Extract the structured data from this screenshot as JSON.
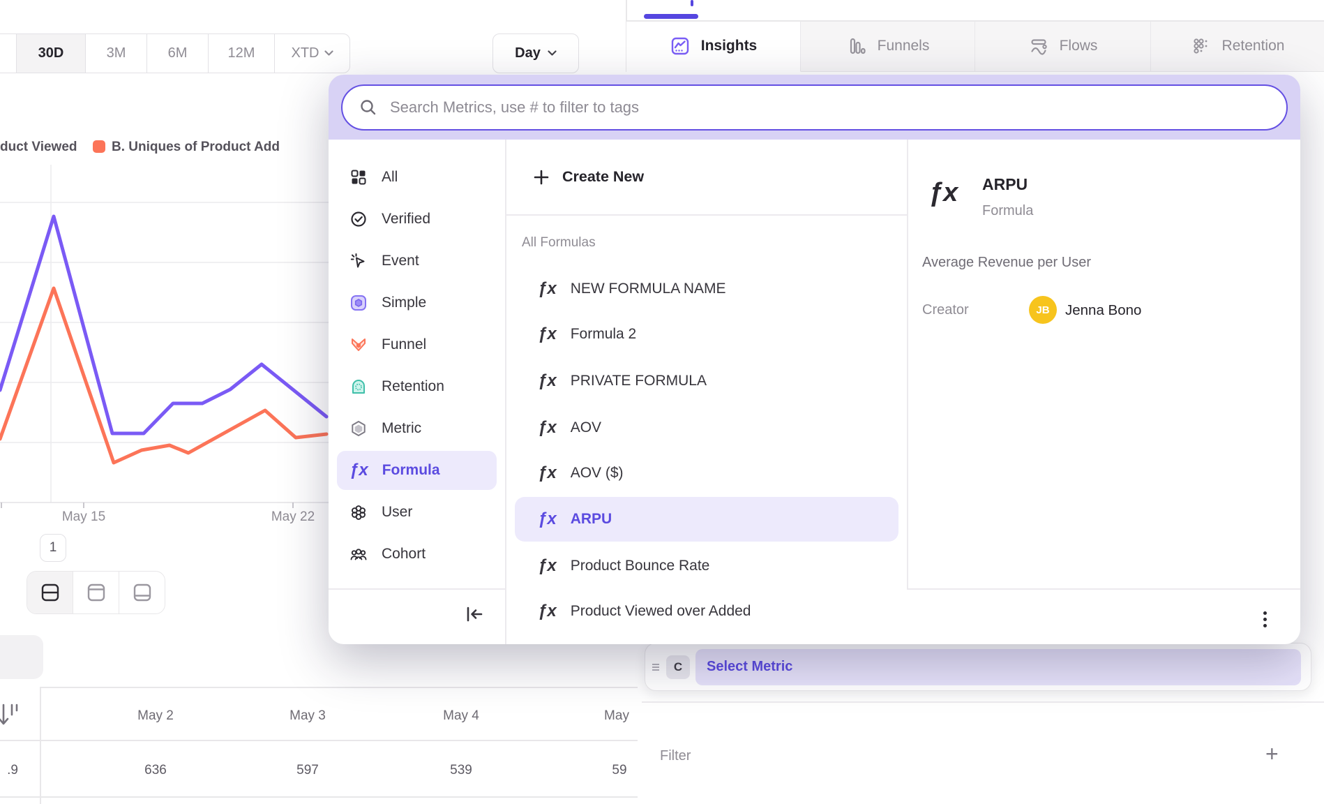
{
  "topbar": {
    "time_ranges": [
      {
        "label": "30D",
        "active": true
      },
      {
        "label": "3M",
        "active": false
      },
      {
        "label": "6M",
        "active": false
      },
      {
        "label": "12M",
        "active": false
      },
      {
        "label": "XTD",
        "active": false,
        "has_dropdown": true
      }
    ],
    "granularity_label": "Day",
    "tabs": [
      {
        "label": "Insights",
        "active": true
      },
      {
        "label": "Funnels",
        "active": false
      },
      {
        "label": "Flows",
        "active": false
      },
      {
        "label": "Retention",
        "active": false
      }
    ]
  },
  "chart": {
    "legend_a_label": "duct Viewed",
    "legend_b_label": "B. Uniques of Product Add",
    "x_tick_labels": [
      "May 15",
      "May 22"
    ],
    "pagination_label": "1",
    "series": {
      "purple": {
        "name": "A. Uniques of Product Viewed",
        "color": "#7a5af5",
        "points": [
          [
            0,
            559
          ],
          [
            77,
            310
          ],
          [
            161,
            621
          ],
          [
            206,
            621
          ],
          [
            248,
            578
          ],
          [
            290,
            578
          ],
          [
            330,
            558
          ],
          [
            375,
            522
          ],
          [
            468,
            597
          ]
        ]
      },
      "orange": {
        "name": "B. Uniques of Product Added",
        "color": "#fc7458",
        "points": [
          [
            0,
            629
          ],
          [
            77,
            413
          ],
          [
            163,
            663
          ],
          [
            203,
            645
          ],
          [
            243,
            638
          ],
          [
            270,
            649
          ],
          [
            380,
            588
          ],
          [
            424,
            627
          ],
          [
            468,
            622
          ]
        ]
      }
    }
  },
  "table": {
    "row_partial_label": ".9",
    "columns": [
      {
        "header": "May 2",
        "value": "636"
      },
      {
        "header": "May 3",
        "value": "597"
      },
      {
        "header": "May 4",
        "value": "539"
      },
      {
        "header": "May",
        "value": "59"
      }
    ]
  },
  "metric_picker": {
    "search_placeholder": "Search Metrics, use # to filter to tags",
    "categories": [
      {
        "label": "All",
        "selected": false
      },
      {
        "label": "Verified",
        "selected": false
      },
      {
        "label": "Event",
        "selected": false
      },
      {
        "label": "Simple",
        "selected": false
      },
      {
        "label": "Funnel",
        "selected": false
      },
      {
        "label": "Retention",
        "selected": false
      },
      {
        "label": "Metric",
        "selected": false
      },
      {
        "label": "Formula",
        "selected": true
      },
      {
        "label": "User",
        "selected": false
      },
      {
        "label": "Cohort",
        "selected": false
      }
    ],
    "create_new_label": "Create New",
    "section_label": "All Formulas",
    "formulas": [
      "NEW FORMULA NAME",
      "Formula 2",
      "PRIVATE FORMULA",
      "AOV",
      "AOV ($)",
      "ARPU",
      "Product Bounce Rate",
      "Product Viewed over Added"
    ],
    "selected_formula": "ARPU",
    "detail": {
      "title": "ARPU",
      "type_label": "Formula",
      "description": "Average Revenue per User",
      "creator_label": "Creator",
      "creator_initials": "JB",
      "creator_name": "Jenna Bono"
    }
  },
  "query_builder": {
    "metric_row_letter": "C",
    "select_metric_label": "Select Metric",
    "filter_label": "Filter",
    "add_filter_label": "+"
  },
  "colors": {
    "accent_purple": "#5b4be0",
    "search_border": "#6450e3",
    "line_purple": "#7a5af5",
    "line_orange": "#fc7458",
    "highlight_lavender": "#edeafc",
    "modal_band_lavender": "#d8d2f5",
    "avatar_yellow": "#f7c41d"
  }
}
